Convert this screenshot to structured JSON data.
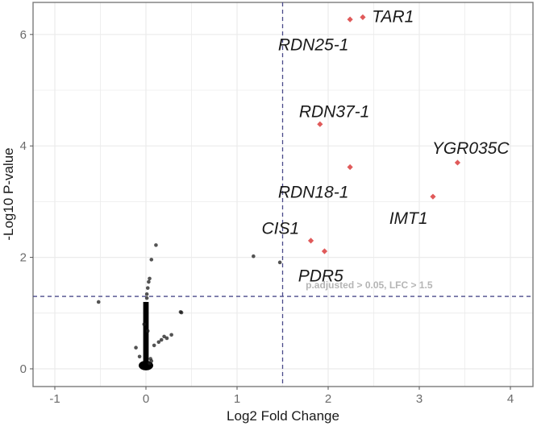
{
  "chart_data": {
    "type": "scatter",
    "title": "",
    "xlabel": "Log2 Fold Change",
    "ylabel": "-Log10 P-value",
    "xlim": [
      -1.25,
      4.25
    ],
    "ylim": [
      -0.33,
      6.58
    ],
    "x_ticks": [
      -1,
      0,
      1,
      2,
      3,
      4
    ],
    "y_ticks": [
      0,
      2,
      4,
      6
    ],
    "x_tick_labels": [
      "-1",
      "0",
      "1",
      "2",
      "3",
      "4"
    ],
    "y_tick_labels": [
      "0",
      "2",
      "4",
      "6"
    ],
    "grid": true,
    "legend": "none",
    "threshold_lines": {
      "vertical_x": 1.5,
      "horizontal_y": 1.3,
      "color": "#4a4a8a",
      "style": "dashed"
    },
    "annotation": {
      "text": "p.adjusted > 0.05, LFC > 1.5",
      "x": 2.45,
      "y": 1.5
    },
    "significant_color": "#e05a5a",
    "nonsignificant_color": "#1a1a1a",
    "significant_points": [
      {
        "gene": "TAR1",
        "x": 2.38,
        "y": 6.31
      },
      {
        "gene": "RDN25-1",
        "x": 2.24,
        "y": 6.27
      },
      {
        "gene": "RDN37-1",
        "x": 1.91,
        "y": 4.39
      },
      {
        "gene": "RDN18-1",
        "x": 2.24,
        "y": 3.62
      },
      {
        "gene": "YGR035C",
        "x": 3.42,
        "y": 3.7
      },
      {
        "gene": "IMT1",
        "x": 3.15,
        "y": 3.09
      },
      {
        "gene": "CIS1",
        "x": 1.81,
        "y": 2.3
      },
      {
        "gene": "PDR5",
        "x": 1.96,
        "y": 2.11
      }
    ],
    "gene_labels": [
      {
        "gene": "TAR1",
        "lx": 2.48,
        "ly": 6.32
      },
      {
        "gene": "RDN25-1",
        "lx": 1.45,
        "ly": 5.82
      },
      {
        "gene": "RDN37-1",
        "lx": 1.68,
        "ly": 4.62
      },
      {
        "gene": "RDN18-1",
        "lx": 1.45,
        "ly": 3.17
      },
      {
        "gene": "YGR035C",
        "lx": 3.14,
        "ly": 3.96
      },
      {
        "gene": "IMT1",
        "lx": 2.67,
        "ly": 2.7
      },
      {
        "gene": "CIS1",
        "lx": 1.27,
        "ly": 2.52
      },
      {
        "gene": "PDR5",
        "lx": 1.67,
        "ly": 1.67
      }
    ],
    "nonsignificant_points": [
      {
        "x": 0.11,
        "y": 2.22
      },
      {
        "x": 0.06,
        "y": 1.96
      },
      {
        "x": 0.04,
        "y": 1.62
      },
      {
        "x": 0.03,
        "y": 1.56
      },
      {
        "x": 0.02,
        "y": 1.45
      },
      {
        "x": 0.01,
        "y": 1.34
      },
      {
        "x": 0.01,
        "y": 1.27
      },
      {
        "x": -0.52,
        "y": 1.2
      },
      {
        "x": 1.18,
        "y": 2.02
      },
      {
        "x": 1.47,
        "y": 1.91
      },
      {
        "x": 0.39,
        "y": 1.01
      },
      {
        "x": 0.38,
        "y": 1.02
      },
      {
        "x": 0.28,
        "y": 0.61
      },
      {
        "x": 0.23,
        "y": 0.55
      },
      {
        "x": 0.2,
        "y": 0.58
      },
      {
        "x": 0.17,
        "y": 0.52
      },
      {
        "x": 0.14,
        "y": 0.48
      },
      {
        "x": 0.09,
        "y": 0.42
      },
      {
        "x": -0.11,
        "y": 0.38
      },
      {
        "x": -0.07,
        "y": 0.22
      },
      {
        "x": 0.05,
        "y": 0.18
      },
      {
        "x": 0.04,
        "y": 0.1
      },
      {
        "x": 0.06,
        "y": 0.14
      },
      {
        "x": 0.02,
        "y": 0.68
      },
      {
        "x": -0.02,
        "y": 0.8
      }
    ],
    "dense_cluster": {
      "x_min": -0.03,
      "x_max": 0.03,
      "y_min": 0.0,
      "y_max": 1.2,
      "description": "Dense column of non-significant genes near LFC 0"
    }
  }
}
